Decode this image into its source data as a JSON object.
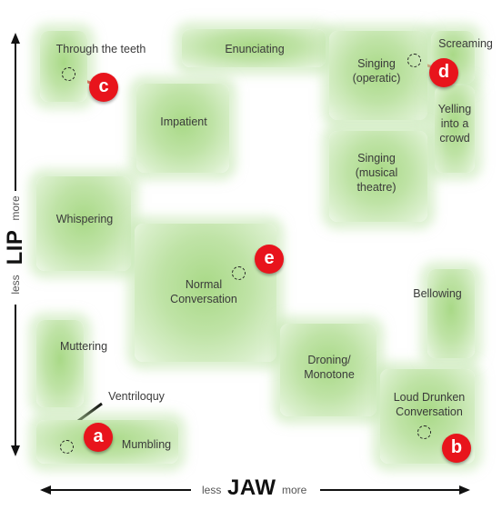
{
  "regions": [
    {
      "id": "through-the-teeth",
      "label": "Through the teeth"
    },
    {
      "id": "enunciating",
      "label": "Enunciating"
    },
    {
      "id": "singing-operatic",
      "label": "Singing\n(operatic)"
    },
    {
      "id": "screaming",
      "label": "Screaming"
    },
    {
      "id": "yelling-into-a-crowd",
      "label": "Yelling\ninto a\ncrowd"
    },
    {
      "id": "impatient",
      "label": "Impatient"
    },
    {
      "id": "singing-musical-theatre",
      "label": "Singing\n(musical\ntheatre)"
    },
    {
      "id": "whispering",
      "label": "Whispering"
    },
    {
      "id": "normal-conversation",
      "label": "Normal\nConversation"
    },
    {
      "id": "bellowing",
      "label": "Bellowing"
    },
    {
      "id": "muttering",
      "label": "Muttering"
    },
    {
      "id": "droning-monotone",
      "label": "Droning/\nMonotone"
    },
    {
      "id": "loud-drunken-conversation",
      "label": "Loud Drunken\nConversation"
    },
    {
      "id": "mumbling",
      "label": "Mumbling"
    }
  ],
  "annotations": {
    "ventriloquy": "Ventriloquy"
  },
  "markers": [
    {
      "id": "a",
      "letter": "a"
    },
    {
      "id": "b",
      "letter": "b"
    },
    {
      "id": "c",
      "letter": "c"
    },
    {
      "id": "d",
      "letter": "d"
    },
    {
      "id": "e",
      "letter": "e"
    }
  ],
  "axes": {
    "x": {
      "less": "less",
      "title": "JAW",
      "more": "more"
    },
    "y": {
      "less": "less",
      "title": "LIP",
      "more": "more"
    }
  },
  "colors": {
    "region": "#a9d987",
    "badge": "#e8141c",
    "arrow": "#111111"
  }
}
